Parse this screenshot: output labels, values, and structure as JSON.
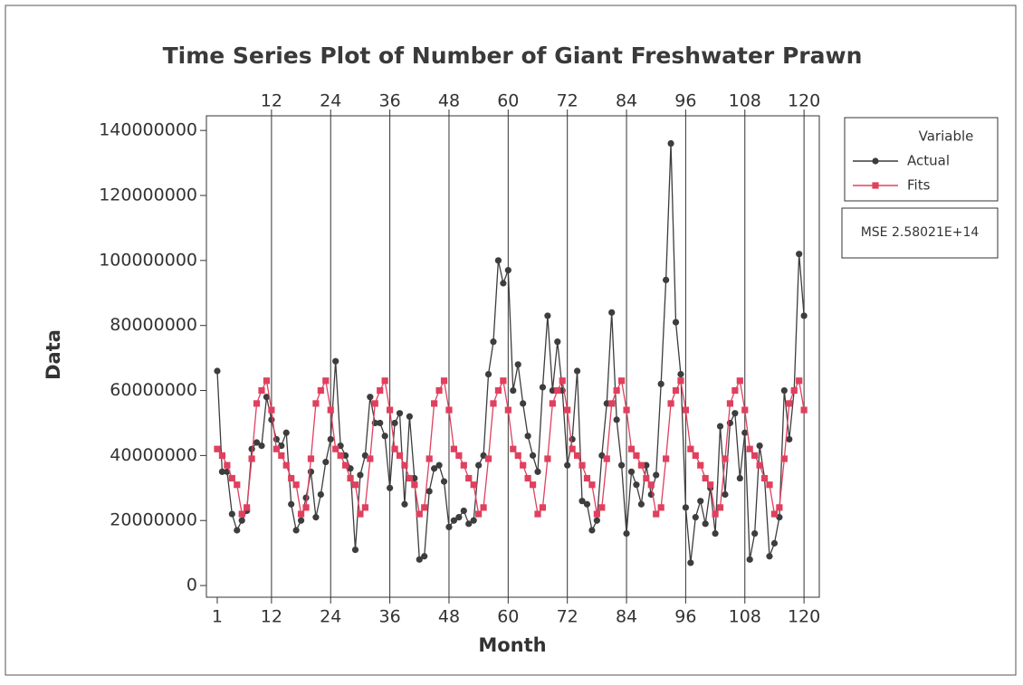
{
  "chart_data": {
    "type": "line",
    "title": "Time Series Plot of Number of Giant Freshwater Prawn",
    "x_label": "Month",
    "y_label": "Data",
    "x": [
      1,
      2,
      3,
      4,
      5,
      6,
      7,
      8,
      9,
      10,
      11,
      12,
      13,
      14,
      15,
      16,
      17,
      18,
      19,
      20,
      21,
      22,
      23,
      24,
      25,
      26,
      27,
      28,
      29,
      30,
      31,
      32,
      33,
      34,
      35,
      36,
      37,
      38,
      39,
      40,
      41,
      42,
      43,
      44,
      45,
      46,
      47,
      48,
      49,
      50,
      51,
      52,
      53,
      54,
      55,
      56,
      57,
      58,
      59,
      60,
      61,
      62,
      63,
      64,
      65,
      66,
      67,
      68,
      69,
      70,
      71,
      72,
      73,
      74,
      75,
      76,
      77,
      78,
      79,
      80,
      81,
      82,
      83,
      84,
      85,
      86,
      87,
      88,
      89,
      90,
      91,
      92,
      93,
      94,
      95,
      96,
      97,
      98,
      99,
      100,
      101,
      102,
      103,
      104,
      105,
      106,
      107,
      108,
      109,
      110,
      111,
      112,
      113,
      114,
      115,
      116,
      117,
      118,
      119,
      120
    ],
    "series": [
      {
        "name": "Actual",
        "color": "#3d3d3d",
        "marker": "circle",
        "values": [
          66000000,
          35000000,
          35000000,
          22000000,
          17000000,
          20000000,
          23000000,
          42000000,
          44000000,
          43000000,
          58000000,
          51000000,
          45000000,
          43000000,
          47000000,
          25000000,
          17000000,
          20000000,
          27000000,
          35000000,
          21000000,
          28000000,
          38000000,
          45000000,
          69000000,
          43000000,
          40000000,
          36000000,
          11000000,
          34000000,
          40000000,
          58000000,
          50000000,
          50000000,
          46000000,
          30000000,
          50000000,
          53000000,
          25000000,
          52000000,
          33000000,
          8000000,
          9000000,
          29000000,
          36000000,
          37000000,
          32000000,
          18000000,
          20000000,
          21000000,
          23000000,
          19000000,
          20000000,
          37000000,
          40000000,
          65000000,
          75000000,
          100000000,
          93000000,
          97000000,
          60000000,
          68000000,
          56000000,
          46000000,
          40000000,
          35000000,
          61000000,
          83000000,
          60000000,
          75000000,
          60000000,
          37000000,
          45000000,
          66000000,
          26000000,
          25000000,
          17000000,
          20000000,
          40000000,
          56000000,
          84000000,
          51000000,
          37000000,
          16000000,
          35000000,
          31000000,
          25000000,
          37000000,
          28000000,
          34000000,
          62000000,
          94000000,
          136000000,
          81000000,
          65000000,
          24000000,
          7000000,
          21000000,
          26000000,
          19000000,
          30000000,
          16000000,
          49000000,
          28000000,
          50000000,
          53000000,
          33000000,
          47000000,
          8000000,
          16000000,
          43000000,
          33000000,
          9000000,
          13000000,
          21000000,
          60000000,
          45000000,
          60000000,
          102000000,
          83000000
        ]
      },
      {
        "name": "Fits",
        "color": "#e0405e",
        "marker": "square",
        "values": [
          42000000,
          40000000,
          37000000,
          33000000,
          31000000,
          22000000,
          24000000,
          39000000,
          56000000,
          60000000,
          63000000,
          54000000,
          42000000,
          40000000,
          37000000,
          33000000,
          31000000,
          22000000,
          24000000,
          39000000,
          56000000,
          60000000,
          63000000,
          54000000,
          42000000,
          40000000,
          37000000,
          33000000,
          31000000,
          22000000,
          24000000,
          39000000,
          56000000,
          60000000,
          63000000,
          54000000,
          42000000,
          40000000,
          37000000,
          33000000,
          31000000,
          22000000,
          24000000,
          39000000,
          56000000,
          60000000,
          63000000,
          54000000,
          42000000,
          40000000,
          37000000,
          33000000,
          31000000,
          22000000,
          24000000,
          39000000,
          56000000,
          60000000,
          63000000,
          54000000,
          42000000,
          40000000,
          37000000,
          33000000,
          31000000,
          22000000,
          24000000,
          39000000,
          56000000,
          60000000,
          63000000,
          54000000,
          42000000,
          40000000,
          37000000,
          33000000,
          31000000,
          22000000,
          24000000,
          39000000,
          56000000,
          60000000,
          63000000,
          54000000,
          42000000,
          40000000,
          37000000,
          33000000,
          31000000,
          22000000,
          24000000,
          39000000,
          56000000,
          60000000,
          63000000,
          54000000,
          42000000,
          40000000,
          37000000,
          33000000,
          31000000,
          22000000,
          24000000,
          39000000,
          56000000,
          60000000,
          63000000,
          54000000,
          42000000,
          40000000,
          37000000,
          33000000,
          31000000,
          22000000,
          24000000,
          39000000,
          56000000,
          60000000,
          63000000,
          54000000
        ]
      }
    ],
    "xlim": [
      -1.2,
      123.1
    ],
    "ylim": [
      -3600000,
      144500000
    ],
    "xticks": [
      1,
      12,
      24,
      36,
      48,
      60,
      72,
      84,
      96,
      108,
      120
    ],
    "xticks_top": [
      12,
      24,
      36,
      48,
      60,
      72,
      84,
      96,
      108,
      120
    ],
    "yticks": [
      0,
      20000000,
      40000000,
      60000000,
      80000000,
      100000000,
      120000000,
      140000000
    ],
    "legend_title": "Variable",
    "legend": "right",
    "annotation": "MSE 2.58021E+14"
  }
}
